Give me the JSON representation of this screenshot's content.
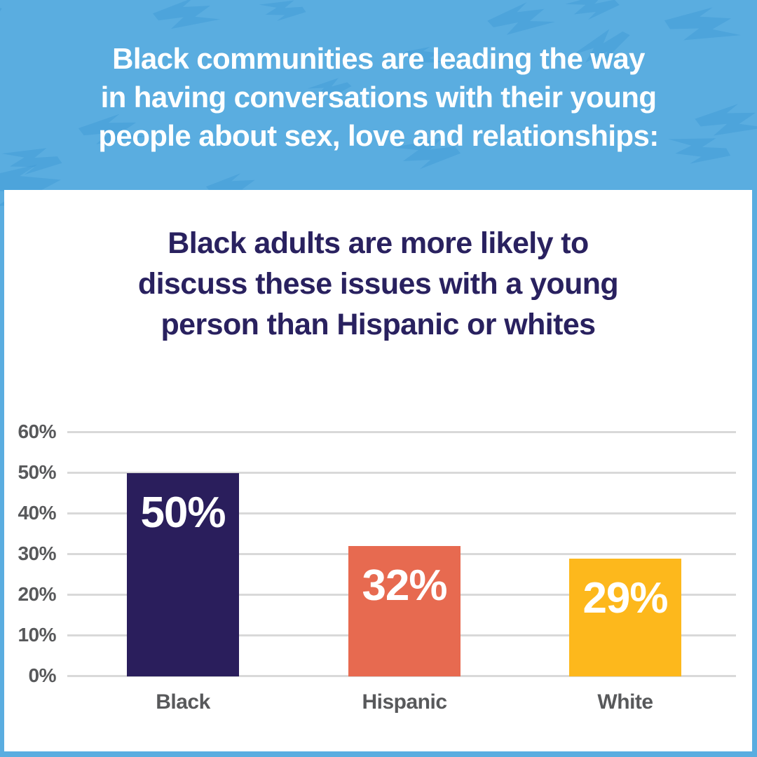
{
  "banner": {
    "heading_lines": [
      "Black communities are leading the way",
      "in having conversations with their young",
      "people about sex, love and relationships:"
    ]
  },
  "card": {
    "title_lines": [
      "Black adults are more likely to",
      "discuss these issues with a young",
      "person than Hispanic or whites"
    ]
  },
  "chart_data": {
    "type": "bar",
    "title": "Black adults are more likely to discuss these issues with a young person than Hispanic or whites",
    "categories": [
      "Black",
      "Hispanic",
      "White"
    ],
    "values": [
      50,
      32,
      29
    ],
    "value_labels": [
      "50%",
      "32%",
      "29%"
    ],
    "bar_colors": [
      "#2a1e5c",
      "#e76a50",
      "#fdb81c"
    ],
    "y_ticks": [
      "60%",
      "50%",
      "40%",
      "30%",
      "20%",
      "10%",
      "0%"
    ],
    "y_tick_values": [
      60,
      50,
      40,
      30,
      20,
      10,
      0
    ],
    "ylim": [
      0,
      60
    ],
    "unit": "percent",
    "grid": true,
    "legend": "none",
    "xlabel": "",
    "ylabel": ""
  },
  "colors": {
    "background_blue": "#5aade0",
    "bolt_blue": "#4aa0d9",
    "card_white": "#ffffff",
    "title_navy": "#29215f",
    "bar_navy": "#2a1e5c",
    "bar_coral": "#e76a50",
    "bar_amber": "#fdb81c",
    "axis_gray": "#58595b",
    "gridline_gray": "#d9d9d9",
    "value_label_white": "#ffffff"
  }
}
